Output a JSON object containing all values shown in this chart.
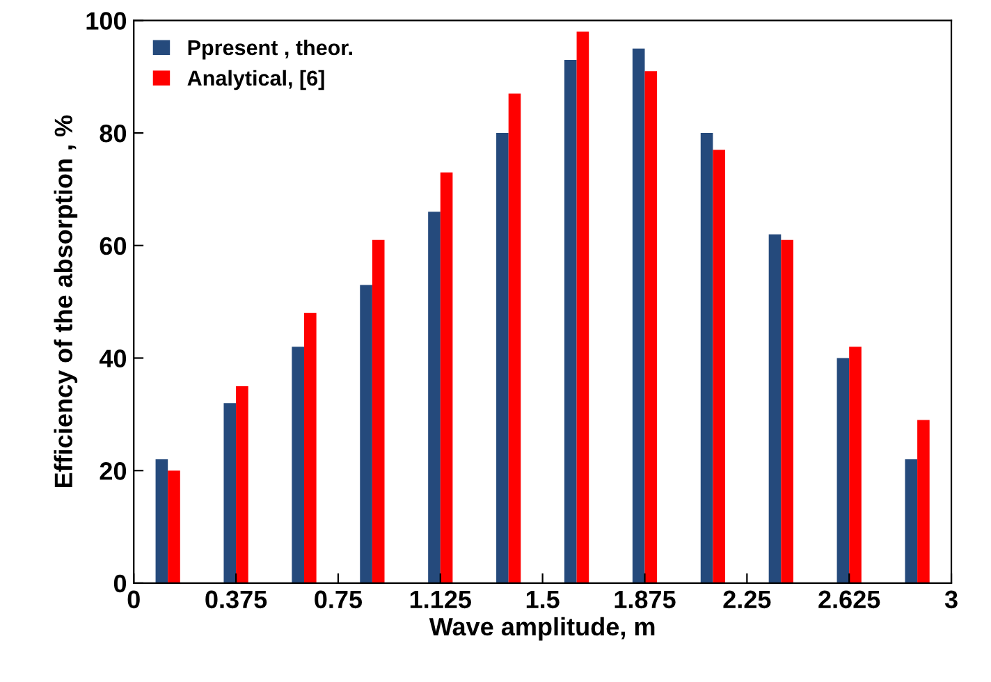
{
  "chart_data": {
    "type": "bar",
    "xlabel": "Wave amplitude, m",
    "ylabel": "Efficiency of the absorption , %",
    "x": [
      0.125,
      0.375,
      0.625,
      0.875,
      1.125,
      1.375,
      1.625,
      1.875,
      2.125,
      2.375,
      2.625,
      2.875
    ],
    "series": [
      {
        "name": "Ppresent , theor.",
        "color": "#254a7c",
        "values": [
          22,
          32,
          42,
          53,
          66,
          80,
          93,
          95,
          80,
          62,
          40,
          22
        ]
      },
      {
        "name": "Analytical, [6]",
        "color": "#ff0000",
        "values": [
          20,
          35,
          48,
          61,
          73,
          87,
          98,
          91,
          77,
          61,
          42,
          29
        ]
      }
    ],
    "xlim": [
      0,
      3
    ],
    "xticks": [
      0,
      0.375,
      0.75,
      1.125,
      1.5,
      1.875,
      2.25,
      2.625,
      3
    ],
    "ylim": [
      0,
      100
    ],
    "yticks": [
      0,
      20,
      40,
      60,
      80,
      100
    ],
    "grid": false,
    "legend": "top left"
  }
}
